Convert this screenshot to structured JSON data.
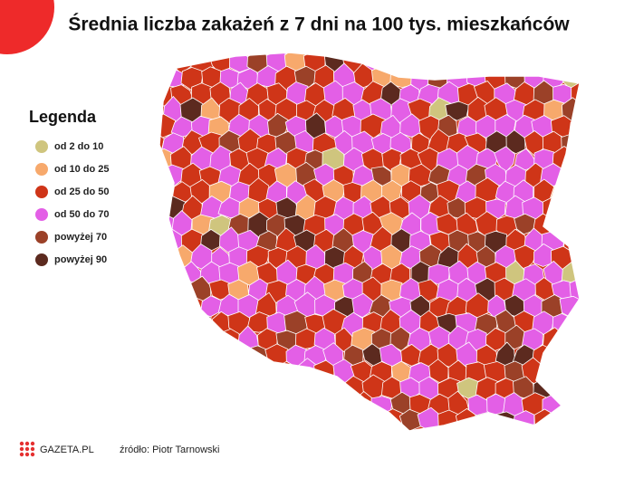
{
  "header": {
    "title": "Średnia liczba zakażeń z 7 dni na 100 tys. mieszkańców"
  },
  "legend": {
    "title": "Legenda",
    "items": [
      {
        "label": "od 2 do 10",
        "color": "#cfc57e"
      },
      {
        "label": "od 10 do 25",
        "color": "#f7a96c"
      },
      {
        "label": "od 25 do 50",
        "color": "#cf3518"
      },
      {
        "label": "od 50 do 70",
        "color": "#e35fe6"
      },
      {
        "label": "powyżej 70",
        "color": "#9b4128"
      },
      {
        "label": "powyżej 90",
        "color": "#5c2a1f"
      }
    ]
  },
  "footer": {
    "logo": "GAZETA.PL",
    "source": "źródło: Piotr Tarnowski"
  }
}
